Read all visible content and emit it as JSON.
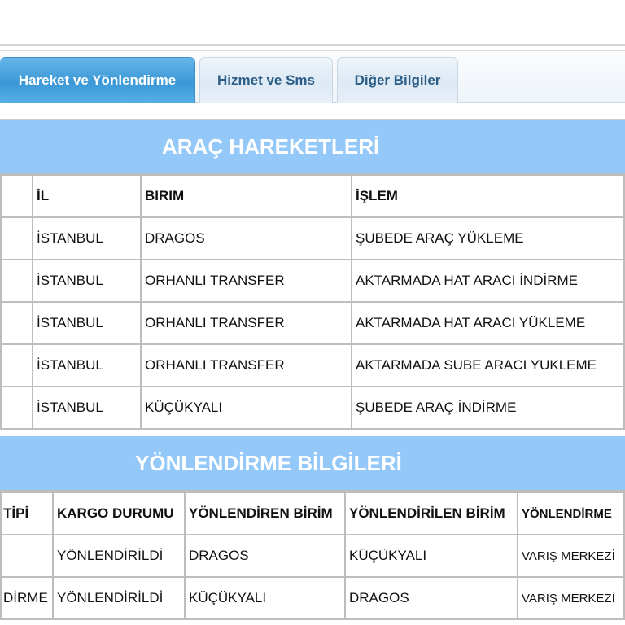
{
  "tabs": [
    {
      "label": "Hareket ve Yönlendirme",
      "active": true
    },
    {
      "label": "Hizmet ve Sms",
      "active": false
    },
    {
      "label": "Diğer Bilgiler",
      "active": false
    }
  ],
  "arac": {
    "title": "ARAÇ HAREKETLERİ",
    "headers": [
      "",
      "İL",
      "BIRIM",
      "İŞLEM"
    ],
    "rows": [
      [
        "",
        "İSTANBUL",
        "DRAGOS",
        "ŞUBEDE ARAÇ YÜKLEME"
      ],
      [
        "",
        "İSTANBUL",
        "ORHANLI TRANSFER",
        "AKTARMADA HAT ARACI İNDİRME"
      ],
      [
        "",
        "İSTANBUL",
        "ORHANLI TRANSFER",
        "AKTARMADA HAT ARACI YÜKLEME"
      ],
      [
        "",
        "İSTANBUL",
        "ORHANLI TRANSFER",
        "AKTARMADA SUBE ARACI YUKLEME"
      ],
      [
        "",
        "İSTANBUL",
        "KÜÇÜKYALI",
        "ŞUBEDE ARAÇ İNDİRME"
      ]
    ]
  },
  "yonlendirme": {
    "title": "YÖNLENDİRME BİLGİLERİ",
    "headers": [
      "TİPİ",
      "KARGO DURUMU",
      "YÖNLENDİREN BİRİM",
      "YÖNLENDİRİLEN BİRİM",
      "YÖNLENDİRME"
    ],
    "rows": [
      [
        "",
        "YÖNLENDİRİLDİ",
        "DRAGOS",
        "KÜÇÜKYALI",
        "VARIŞ MERKEZİ"
      ],
      [
        "DİRME",
        "YÖNLENDİRİLDİ",
        "KÜÇÜKYALI",
        "DRAGOS",
        "VARIŞ MERKEZİ"
      ]
    ]
  }
}
